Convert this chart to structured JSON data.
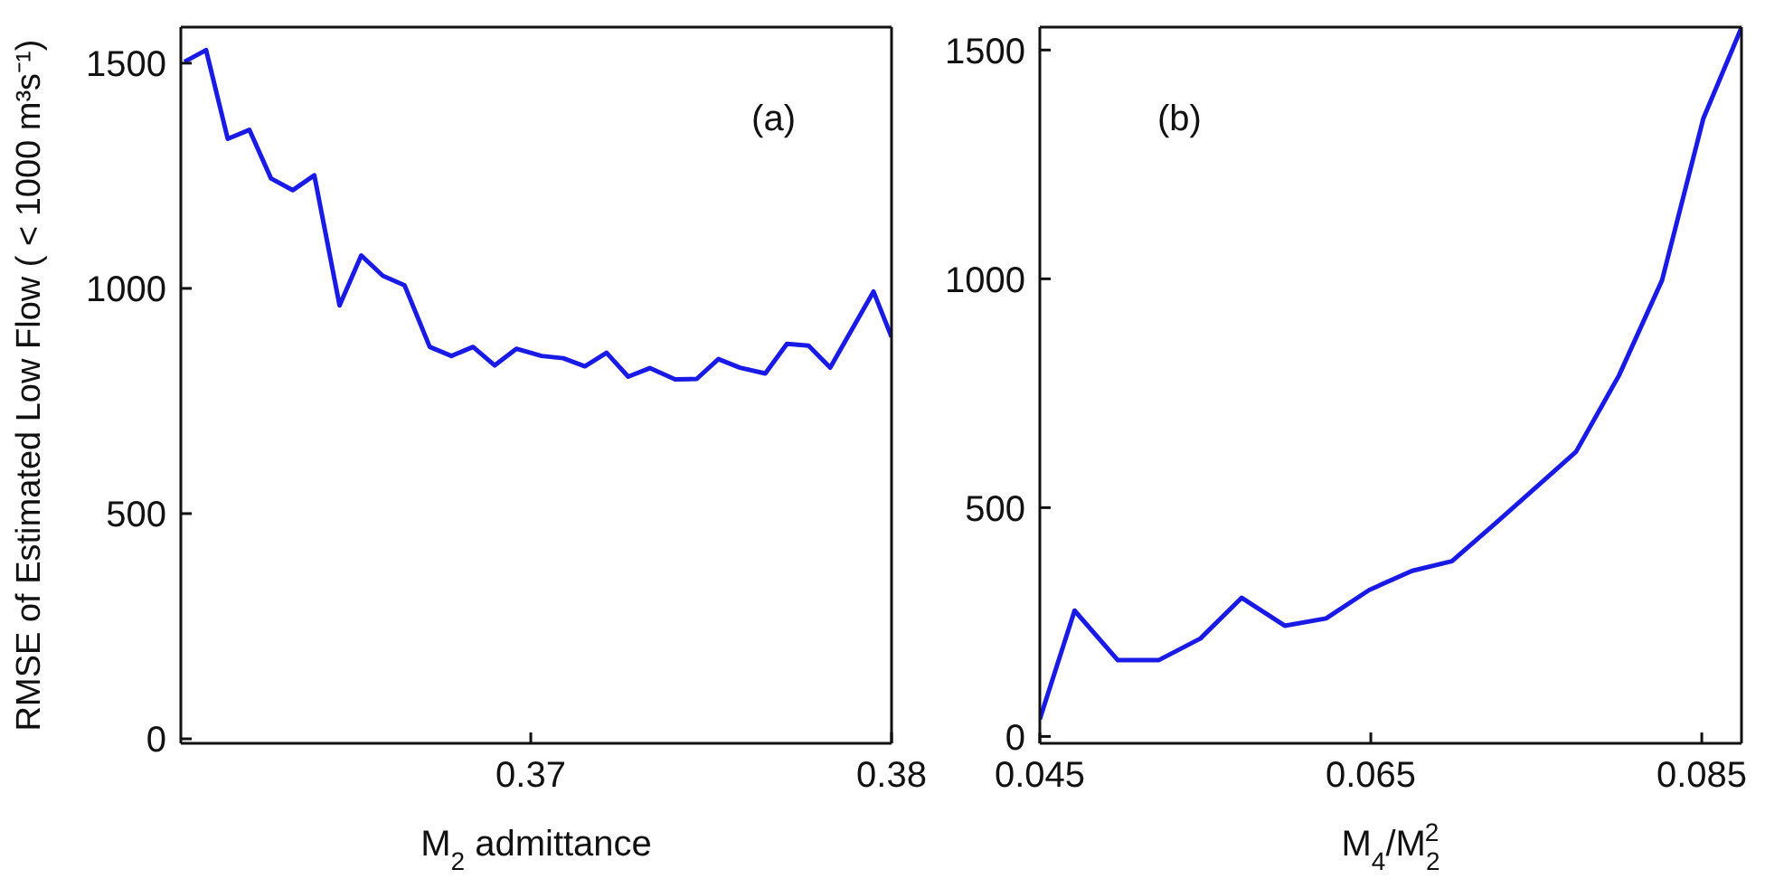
{
  "chart_data": [
    {
      "type": "line",
      "ylabel": "RMSE of Estimated Low Flow ( < 1000 m³s⁻¹)",
      "xlabel": "M$_{2}$ admittance",
      "annotations": [
        "(a)"
      ],
      "x": [
        0.3604,
        0.361,
        0.3616,
        0.3622,
        0.3628,
        0.3634,
        0.364,
        0.3647,
        0.3653,
        0.3659,
        0.3665,
        0.3672,
        0.3678,
        0.3684,
        0.369,
        0.3696,
        0.3703,
        0.3709,
        0.3715,
        0.3721,
        0.3727,
        0.3733,
        0.374,
        0.3746,
        0.3752,
        0.3758,
        0.3765,
        0.3771,
        0.3777,
        0.3783,
        0.3795,
        0.38
      ],
      "series": [
        {
          "color": "#1a1ae6",
          "values": [
            1503,
            1529,
            1332,
            1352,
            1244,
            1218,
            1251,
            962,
            1073,
            1028,
            1007,
            870,
            850,
            870,
            829,
            866,
            850,
            845,
            827,
            857,
            804,
            823,
            798,
            799,
            843,
            824,
            811,
            877,
            873,
            824,
            993,
            892
          ]
        }
      ],
      "xlim": [
        0.3603,
        0.38
      ],
      "xticks": [
        0.37,
        0.38
      ],
      "ylim": [
        -10,
        1580
      ],
      "yticks": [
        0,
        500,
        1000,
        1500
      ],
      "grid": false,
      "legend": false,
      "marker": "none",
      "line_style": "solid"
    },
    {
      "type": "line",
      "xlabel": "M$_{4}$/M$_{2}$$^{2}$",
      "annotations": [
        "(b)"
      ],
      "x": [
        0.045,
        0.0471,
        0.0497,
        0.0522,
        0.0547,
        0.0572,
        0.0598,
        0.0623,
        0.0649,
        0.0675,
        0.0699,
        0.0726,
        0.0774,
        0.08,
        0.0826,
        0.0851,
        0.0874
      ],
      "series": [
        {
          "color": "#1a1ae6",
          "values": [
            38,
            275,
            167,
            167,
            214,
            303,
            242,
            258,
            320,
            362,
            383,
            468,
            622,
            789,
            997,
            1351,
            1549
          ]
        }
      ],
      "xlim": [
        0.045,
        0.0874
      ],
      "xticks": [
        0.045,
        0.065,
        0.085
      ],
      "ylim": [
        -15,
        1550
      ],
      "yticks": [
        0,
        500,
        1000,
        1500
      ],
      "grid": false,
      "legend": false,
      "marker": "none",
      "line_style": "solid"
    }
  ]
}
